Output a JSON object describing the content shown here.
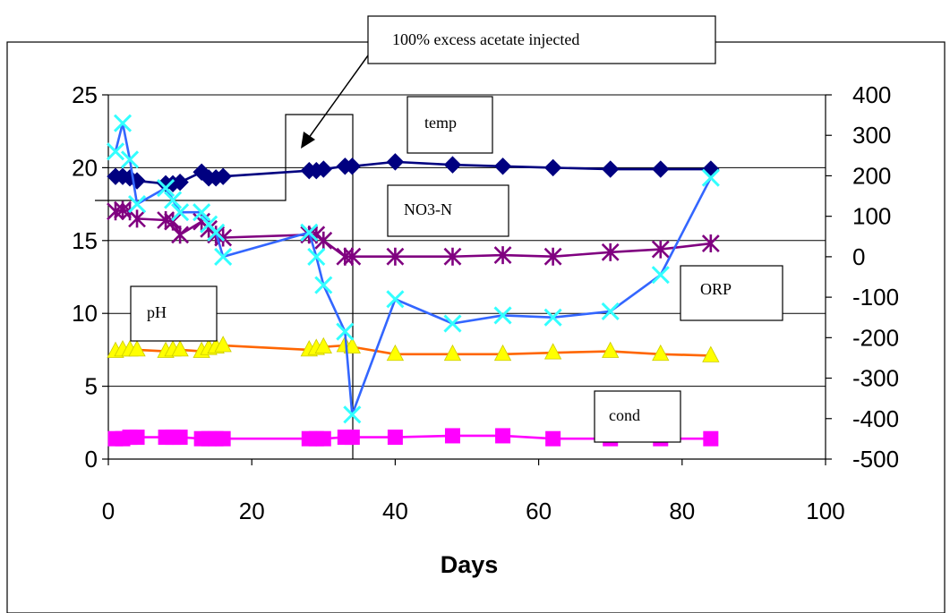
{
  "chart_data": {
    "type": "line",
    "xlabel": "Days",
    "xlim": [
      0,
      100
    ],
    "x_ticks": [
      "0",
      "20",
      "40",
      "60",
      "80",
      "100"
    ],
    "ylim_left": [
      0,
      25
    ],
    "y_ticks_left": [
      "0",
      "5",
      "10",
      "15",
      "20",
      "25"
    ],
    "ylim_right": [
      -500,
      400
    ],
    "y_ticks_right": [
      "-500",
      "-400",
      "-300",
      "-200",
      "-100",
      "0",
      "100",
      "200",
      "300",
      "400"
    ],
    "grid": "horizontal major gridlines",
    "annotation": "100% excess acetate injected",
    "annotation_day": 34,
    "series": [
      {
        "name": "temp",
        "axis": "left",
        "marker": "diamond",
        "color": "#000080",
        "marker_color": "#000080",
        "x": [
          1,
          2,
          3,
          4,
          8,
          9,
          10,
          13,
          14,
          15,
          16,
          28,
          29,
          30,
          33,
          34,
          40,
          48,
          55,
          62,
          70,
          77,
          84
        ],
        "y": [
          19.4,
          19.4,
          19.3,
          19.1,
          18.9,
          18.9,
          19.0,
          19.7,
          19.3,
          19.3,
          19.4,
          19.8,
          19.8,
          19.9,
          20.1,
          20.1,
          20.4,
          20.2,
          20.1,
          20.0,
          19.9,
          19.9,
          19.9
        ]
      },
      {
        "name": "NO3-N",
        "axis": "left",
        "marker": "asterisk",
        "color": "#800080",
        "marker_color": "#800080",
        "x": [
          1,
          2,
          3,
          4,
          8,
          9,
          10,
          13,
          14,
          15,
          16,
          28,
          29,
          30,
          33,
          34,
          40,
          48,
          55,
          62,
          70,
          77,
          84
        ],
        "y": [
          17.0,
          17.1,
          17.0,
          16.5,
          16.4,
          16.3,
          15.4,
          16.3,
          15.8,
          15.4,
          15.2,
          15.4,
          15.4,
          15.0,
          13.9,
          13.9,
          13.9,
          13.9,
          14.0,
          13.9,
          14.2,
          14.4,
          14.8
        ]
      },
      {
        "name": "ORP",
        "axis": "right",
        "marker": "x",
        "color": "#3366ff",
        "marker_color": "#33ffff",
        "x": [
          1,
          2,
          3,
          4,
          8,
          9,
          10,
          13,
          14,
          15,
          16,
          28,
          29,
          30,
          33,
          34,
          40,
          48,
          55,
          62,
          70,
          77,
          84
        ],
        "y": [
          260,
          330,
          240,
          130,
          170,
          140,
          110,
          110,
          80,
          60,
          0,
          60,
          0,
          -70,
          -185,
          -390,
          -105,
          -165,
          -145,
          -150,
          -135,
          -45,
          195
        ]
      },
      {
        "name": "pH",
        "axis": "left",
        "marker": "triangle",
        "color": "#ff6600",
        "marker_color": "#ffff00",
        "x": [
          1,
          2,
          3,
          4,
          8,
          9,
          10,
          13,
          14,
          15,
          16,
          28,
          29,
          30,
          33,
          34,
          40,
          48,
          55,
          62,
          70,
          77,
          84
        ],
        "y": [
          7.4,
          7.5,
          7.5,
          7.5,
          7.4,
          7.5,
          7.5,
          7.4,
          7.6,
          7.7,
          7.8,
          7.5,
          7.6,
          7.7,
          7.8,
          7.7,
          7.2,
          7.2,
          7.2,
          7.3,
          7.4,
          7.2,
          7.1
        ]
      },
      {
        "name": "cond",
        "axis": "left",
        "marker": "square",
        "color": "#ff00ff",
        "marker_color": "#ff00ff",
        "x": [
          1,
          2,
          3,
          4,
          8,
          9,
          10,
          13,
          14,
          15,
          16,
          28,
          29,
          30,
          33,
          34,
          40,
          48,
          55,
          62,
          70,
          77,
          84
        ],
        "y": [
          1.4,
          1.4,
          1.5,
          1.5,
          1.5,
          1.5,
          1.5,
          1.4,
          1.4,
          1.4,
          1.4,
          1.4,
          1.4,
          1.4,
          1.5,
          1.5,
          1.5,
          1.6,
          1.6,
          1.4,
          1.4,
          1.4,
          1.4
        ]
      }
    ],
    "labels": {
      "temp": "temp",
      "no3": "NO3-N",
      "ph": "pH",
      "orp": "ORP",
      "cond": "cond"
    }
  }
}
